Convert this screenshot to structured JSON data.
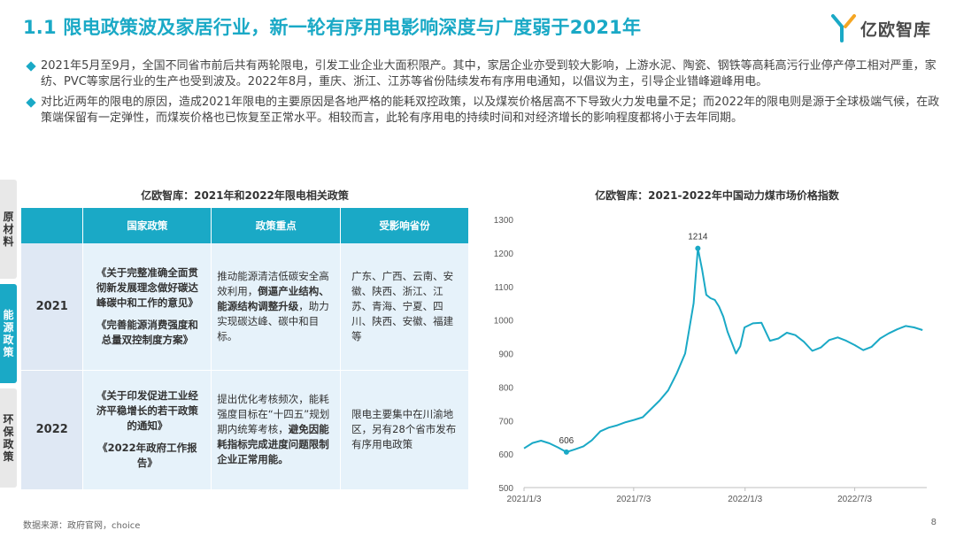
{
  "header": {
    "title": "1.1 限电政策波及家居行业，新一轮有序用电影响深度与广度弱于2021年",
    "logo_text": "亿欧智库"
  },
  "bullets": [
    "2021年5月至9月，全国不同省市前后共有两轮限电，引发工业企业大面积限产。其中，家居企业亦受到较大影响，上游水泥、陶瓷、钢铁等高耗高污行业停产停工相对严重，家纺、PVC等家居行业的生产也受到波及。2022年8月，重庆、浙江、江苏等省份陆续发布有序用电通知，以倡议为主，引导企业错峰避峰用电。",
    "对比近两年的限电的原因，造成2021年限电的主要原因是各地严格的能耗双控政策，以及煤炭价格居高不下导致火力发电量不足；而2022年的限电则是源于全球极端气候，在政策端保留有一定弹性，而煤炭价格也已恢复至正常水平。相较而言，此轮有序用电的持续时间和对经济增长的影响程度都将小于去年同期。"
  ],
  "side_tabs": [
    {
      "label": "原材料",
      "active": false
    },
    {
      "label": "能源政策",
      "active": true
    },
    {
      "label": "环保政策",
      "active": false
    }
  ],
  "table": {
    "title": "亿欧智库：2021年和2022年限电相关政策",
    "headers": [
      "",
      "国家政策",
      "政策重点",
      "受影响省份"
    ],
    "rows": [
      {
        "year": "2021",
        "policy_1": "《关于完整准确全面贯彻新发展理念做好碳达峰碳中和工作的意见》",
        "policy_2": "《完善能源消费强度和总量双控制度方案》",
        "focus_a": "推动能源清洁低碳安全高效利用，",
        "focus_b": "倒逼产业结构、能源结构调整升级",
        "focus_c": "，助力实现碳达峰、碳中和目标。",
        "provinces": "广东、广西、云南、安徽、陕西、浙江、江苏、青海、宁夏、四川、陕西、安徽、福建等"
      },
      {
        "year": "2022",
        "policy_1": "《关于印发促进工业经济平稳增长的若干政策的通知》",
        "policy_2": "《2022年政府工作报告》",
        "focus_a": "提出优化考核频次，能耗强度目标在“十四五”规划期内统筹考核，",
        "focus_b": "避免因能耗指标完成进度问题限制企业正常用能。",
        "focus_c": "",
        "provinces": "限电主要集中在川渝地区，另有28个省市发布有序用电政策"
      }
    ]
  },
  "chart_data": {
    "type": "line",
    "title": "亿欧智库：2021-2022年中国动力煤市场价格指数",
    "xlabel": "",
    "ylabel": "",
    "ylim": [
      500,
      1300
    ],
    "yticks": [
      500,
      600,
      700,
      800,
      900,
      1000,
      1100,
      1200,
      1300
    ],
    "xticks": [
      "2021/1/3",
      "2021/7/3",
      "2022/1/3",
      "2022/7/3"
    ],
    "grid": false,
    "color": "#1aa9c6",
    "x_start": "2021-01-03",
    "x_end": "2022-10-30",
    "series": [
      {
        "name": "",
        "points": [
          [
            "2021-01-03",
            617
          ],
          [
            "2021-01-17",
            633
          ],
          [
            "2021-01-31",
            640
          ],
          [
            "2021-02-14",
            632
          ],
          [
            "2021-02-28",
            620
          ],
          [
            "2021-03-14",
            606
          ],
          [
            "2021-03-28",
            614
          ],
          [
            "2021-04-11",
            623
          ],
          [
            "2021-04-25",
            641
          ],
          [
            "2021-05-09",
            668
          ],
          [
            "2021-05-23",
            679
          ],
          [
            "2021-06-06",
            686
          ],
          [
            "2021-06-20",
            695
          ],
          [
            "2021-07-04",
            702
          ],
          [
            "2021-07-18",
            710
          ],
          [
            "2021-08-01",
            735
          ],
          [
            "2021-08-15",
            760
          ],
          [
            "2021-08-29",
            790
          ],
          [
            "2021-09-12",
            840
          ],
          [
            "2021-09-26",
            900
          ],
          [
            "2021-10-10",
            1050
          ],
          [
            "2021-10-17",
            1214
          ],
          [
            "2021-10-24",
            1150
          ],
          [
            "2021-10-31",
            1075
          ],
          [
            "2021-11-07",
            1065
          ],
          [
            "2021-11-14",
            1060
          ],
          [
            "2021-11-21",
            1040
          ],
          [
            "2021-11-28",
            1010
          ],
          [
            "2021-12-05",
            965
          ],
          [
            "2021-12-19",
            900
          ],
          [
            "2021-12-26",
            922
          ],
          [
            "2022-01-02",
            978
          ],
          [
            "2022-01-16",
            990
          ],
          [
            "2022-01-30",
            992
          ],
          [
            "2022-02-13",
            938
          ],
          [
            "2022-02-27",
            945
          ],
          [
            "2022-03-13",
            962
          ],
          [
            "2022-03-27",
            955
          ],
          [
            "2022-04-10",
            935
          ],
          [
            "2022-04-24",
            908
          ],
          [
            "2022-05-08",
            918
          ],
          [
            "2022-05-22",
            940
          ],
          [
            "2022-06-05",
            948
          ],
          [
            "2022-06-19",
            938
          ],
          [
            "2022-07-03",
            925
          ],
          [
            "2022-07-17",
            910
          ],
          [
            "2022-07-31",
            920
          ],
          [
            "2022-08-14",
            945
          ],
          [
            "2022-08-28",
            960
          ],
          [
            "2022-09-11",
            972
          ],
          [
            "2022-09-25",
            982
          ],
          [
            "2022-10-09",
            978
          ],
          [
            "2022-10-23",
            970
          ]
        ]
      }
    ],
    "annotations": [
      {
        "label": "1214",
        "x": "2021-10-17",
        "y": 1214
      },
      {
        "label": "606",
        "x": "2021-03-14",
        "y": 606
      }
    ]
  },
  "footer": {
    "source": "数据来源：政府官网，choice",
    "page": "8"
  }
}
